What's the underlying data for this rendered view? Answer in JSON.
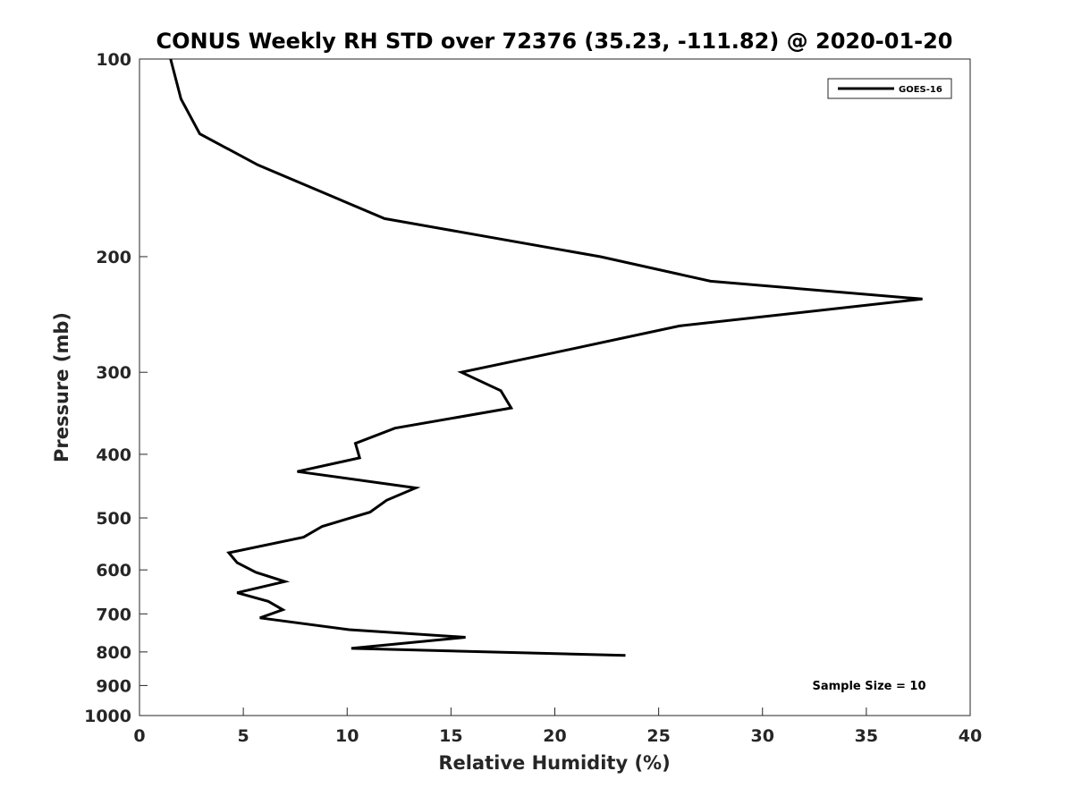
{
  "chart_data": {
    "type": "line",
    "title": "CONUS Weekly RH STD over 72376 (35.23, -111.82) @ 2020-01-20",
    "xlabel": "Relative Humidity (%)",
    "ylabel": "Pressure (mb)",
    "xlim": [
      0,
      40
    ],
    "ylim": [
      100,
      1000
    ],
    "y_scale": "log",
    "y_reversed": true,
    "xticks": [
      0,
      5,
      10,
      15,
      20,
      25,
      30,
      35,
      40
    ],
    "yticks": [
      100,
      200,
      300,
      400,
      500,
      600,
      700,
      800,
      900,
      1000
    ],
    "grid": false,
    "legend": {
      "position": "top-right",
      "entries": [
        "GOES-16"
      ]
    },
    "annotations": [
      "Sample Size = 10"
    ],
    "series": [
      {
        "name": "GOES-16",
        "color": "#000000",
        "x": [
          1.5,
          2.0,
          2.9,
          5.7,
          11.8,
          22.2,
          27.5,
          37.7,
          26.0,
          20.0,
          15.5,
          17.4,
          17.9,
          12.3,
          10.4,
          10.6,
          7.6,
          13.3,
          11.9,
          11.1,
          8.8,
          7.9,
          4.3,
          4.7,
          5.6,
          7.0,
          4.7,
          6.2,
          6.9,
          5.8,
          10.1,
          15.7,
          10.2,
          23.4
        ],
        "y": [
          100,
          115,
          130,
          145,
          175,
          200,
          218,
          232,
          255,
          280,
          300,
          320,
          340,
          365,
          385,
          405,
          425,
          450,
          470,
          490,
          515,
          535,
          565,
          585,
          605,
          625,
          650,
          670,
          690,
          710,
          740,
          760,
          790,
          810
        ]
      }
    ]
  }
}
